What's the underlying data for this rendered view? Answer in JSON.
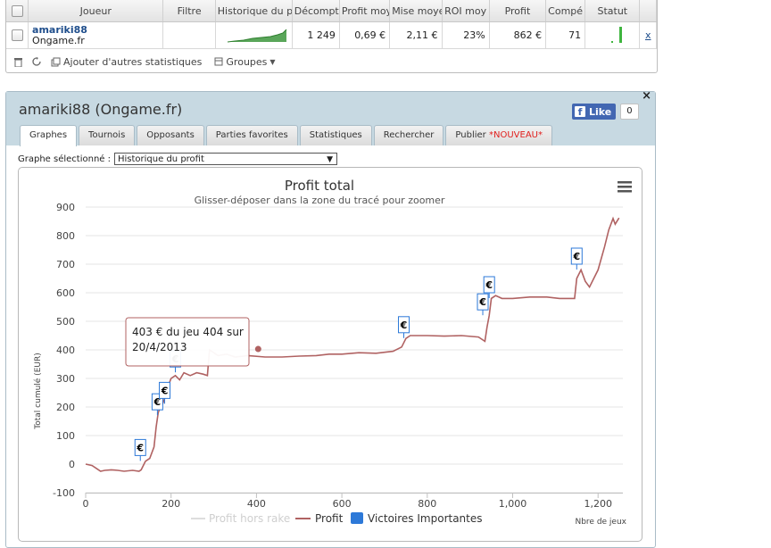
{
  "table": {
    "headers": [
      "Joueur",
      "Filtre",
      "Historique du p",
      "Décompt",
      "Profit moy",
      "Mise moye",
      "ROI moy",
      "Profit",
      "Compé",
      "Statut"
    ],
    "row": {
      "player": "amariki88",
      "network": "Ongame.fr",
      "filter": "",
      "decompte": "1 249",
      "profit_moy": "0,69 €",
      "mise_moy": "2,11 €",
      "roi_moy": "23%",
      "profit": "862 €",
      "competition": "71",
      "remove": "x"
    }
  },
  "toolbar": {
    "add_stats": "Ajouter d'autres statistiques",
    "groups": "Groupes"
  },
  "panel": {
    "title": "amariki88 (Ongame.fr)",
    "like_label": "Like",
    "like_count": "0",
    "close": "×",
    "tabs": [
      {
        "label": "Graphes"
      },
      {
        "label": "Tournois"
      },
      {
        "label": "Opposants"
      },
      {
        "label": "Parties favorites"
      },
      {
        "label": "Statistiques"
      },
      {
        "label": "Rechercher"
      },
      {
        "label": "Publier",
        "badge": "*NOUVEAU*"
      }
    ],
    "graph_select_label": "Graphe sélectionné :",
    "graph_select_value": "Historique du profit"
  },
  "chart_data": {
    "type": "line",
    "title": "Profit total",
    "subtitle": "Glisser-déposer dans la zone du tracé pour zoomer",
    "xlabel": "Nbre de jeux",
    "ylabel": "Total cumulé (EUR)",
    "xlim": [
      0,
      1249
    ],
    "ylim": [
      -100,
      900
    ],
    "x_ticks": [
      0,
      200,
      400,
      600,
      800,
      1000,
      1200
    ],
    "y_ticks": [
      -100,
      0,
      100,
      200,
      300,
      400,
      500,
      600,
      700,
      800,
      900
    ],
    "series": [
      {
        "name": "Profit hors rake",
        "color": "#dddddd",
        "hidden": true,
        "points": []
      },
      {
        "name": "Profit",
        "color": "#b06262",
        "points": [
          [
            0,
            0
          ],
          [
            15,
            -5
          ],
          [
            25,
            -15
          ],
          [
            35,
            -25
          ],
          [
            45,
            -22
          ],
          [
            60,
            -20
          ],
          [
            75,
            -22
          ],
          [
            90,
            -25
          ],
          [
            110,
            -22
          ],
          [
            125,
            -25
          ],
          [
            130,
            -20
          ],
          [
            140,
            10
          ],
          [
            150,
            20
          ],
          [
            160,
            60
          ],
          [
            165,
            130
          ],
          [
            170,
            180
          ],
          [
            175,
            200
          ],
          [
            180,
            210
          ],
          [
            190,
            250
          ],
          [
            195,
            280
          ],
          [
            200,
            300
          ],
          [
            210,
            310
          ],
          [
            220,
            295
          ],
          [
            230,
            320
          ],
          [
            245,
            310
          ],
          [
            260,
            320
          ],
          [
            275,
            315
          ],
          [
            285,
            310
          ],
          [
            290,
            400
          ],
          [
            300,
            390
          ],
          [
            310,
            380
          ],
          [
            330,
            385
          ],
          [
            350,
            375
          ],
          [
            380,
            380
          ],
          [
            420,
            375
          ],
          [
            460,
            375
          ],
          [
            500,
            378
          ],
          [
            540,
            380
          ],
          [
            570,
            385
          ],
          [
            600,
            385
          ],
          [
            640,
            390
          ],
          [
            680,
            388
          ],
          [
            720,
            395
          ],
          [
            740,
            410
          ],
          [
            750,
            440
          ],
          [
            760,
            450
          ],
          [
            800,
            450
          ],
          [
            840,
            448
          ],
          [
            880,
            450
          ],
          [
            920,
            445
          ],
          [
            935,
            430
          ],
          [
            940,
            480
          ],
          [
            945,
            520
          ],
          [
            950,
            580
          ],
          [
            960,
            590
          ],
          [
            975,
            580
          ],
          [
            1000,
            580
          ],
          [
            1040,
            585
          ],
          [
            1080,
            585
          ],
          [
            1110,
            580
          ],
          [
            1130,
            580
          ],
          [
            1145,
            580
          ],
          [
            1150,
            650
          ],
          [
            1160,
            680
          ],
          [
            1170,
            640
          ],
          [
            1180,
            620
          ],
          [
            1190,
            650
          ],
          [
            1200,
            680
          ],
          [
            1215,
            760
          ],
          [
            1225,
            820
          ],
          [
            1235,
            860
          ],
          [
            1240,
            840
          ],
          [
            1249,
            862
          ]
        ]
      }
    ],
    "important_wins": [
      {
        "x": 128,
        "y": 30
      },
      {
        "x": 168,
        "y": 190
      },
      {
        "x": 185,
        "y": 230
      },
      {
        "x": 210,
        "y": 340
      },
      {
        "x": 745,
        "y": 460
      },
      {
        "x": 930,
        "y": 540
      },
      {
        "x": 945,
        "y": 600
      },
      {
        "x": 1150,
        "y": 700
      }
    ],
    "legend": [
      "Profit hors rake",
      "Profit",
      "Victoires Importantes"
    ],
    "legend_position": "bottom",
    "tooltip": {
      "line1": "403 € du jeu 404 sur",
      "line2": "20/4/2013"
    },
    "win_marker_symbol": "€",
    "menu_icon": "hamburger-icon"
  }
}
